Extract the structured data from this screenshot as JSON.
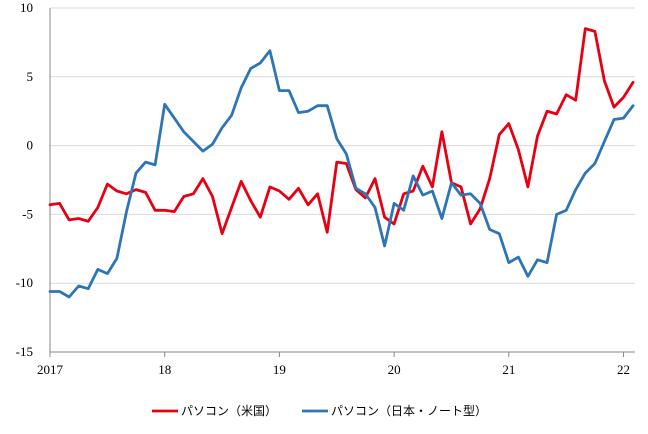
{
  "chart_data": {
    "type": "line",
    "title": "",
    "xlabel": "",
    "ylabel": "",
    "ylim": [
      -15,
      10
    ],
    "yticks": [
      10,
      5,
      0,
      -5,
      -10,
      -15
    ],
    "xlim": [
      2017,
      2022.1
    ],
    "xticks": [
      {
        "value": 2017,
        "label": "2017"
      },
      {
        "value": 2018,
        "label": "18"
      },
      {
        "value": 2019,
        "label": "19"
      },
      {
        "value": 2020,
        "label": "20"
      },
      {
        "value": 2021,
        "label": "21"
      },
      {
        "value": 2022,
        "label": "22"
      }
    ],
    "grid": true,
    "legend_position": "bottom",
    "x_start": 2017.0,
    "x_step_months": 1,
    "series": [
      {
        "name": "パソコン（米国）",
        "color": "#e60012",
        "values": [
          -4.3,
          -4.2,
          -5.4,
          -5.3,
          -5.5,
          -4.5,
          -2.8,
          -3.3,
          -3.5,
          -3.2,
          -3.4,
          -4.7,
          -4.7,
          -4.8,
          -3.7,
          -3.5,
          -2.4,
          -3.7,
          -6.4,
          -4.5,
          -2.6,
          -4.0,
          -5.2,
          -3.0,
          -3.3,
          -3.9,
          -3.1,
          -4.3,
          -3.5,
          -6.3,
          -1.2,
          -1.3,
          -3.2,
          -3.8,
          -2.4,
          -5.2,
          -5.7,
          -3.5,
          -3.3,
          -1.5,
          -3.0,
          1.0,
          -2.7,
          -3.0,
          -5.7,
          -4.6,
          -2.4,
          0.8,
          1.6,
          -0.3,
          -3.0,
          0.7,
          2.5,
          2.3,
          3.7,
          3.3,
          8.5,
          8.3,
          4.7,
          2.8,
          3.5,
          4.6
        ]
      },
      {
        "name": "パソコン（日本・ノート型）",
        "color": "#2e75b6",
        "values": [
          -10.6,
          -10.6,
          -11.0,
          -10.2,
          -10.4,
          -9.0,
          -9.3,
          -8.2,
          -4.8,
          -2.0,
          -1.2,
          -1.4,
          3.0,
          2.0,
          1.0,
          0.3,
          -0.4,
          0.1,
          1.3,
          2.2,
          4.2,
          5.6,
          6.0,
          6.9,
          4.0,
          4.0,
          2.4,
          2.5,
          2.9,
          2.9,
          0.5,
          -0.6,
          -3.1,
          -3.5,
          -4.5,
          -7.3,
          -4.2,
          -4.7,
          -2.2,
          -3.6,
          -3.3,
          -5.3,
          -2.7,
          -3.6,
          -3.5,
          -4.2,
          -6.1,
          -6.4,
          -8.5,
          -8.1,
          -9.5,
          -8.3,
          -8.5,
          -5.0,
          -4.7,
          -3.2,
          -2.0,
          -1.3,
          0.3,
          1.9,
          2.0,
          2.9
        ]
      }
    ]
  }
}
